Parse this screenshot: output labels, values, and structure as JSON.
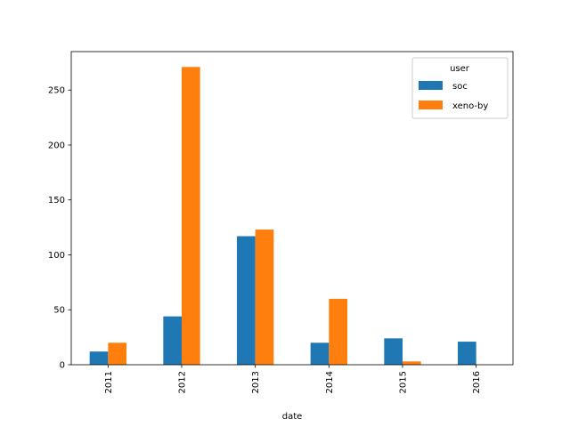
{
  "chart_data": {
    "type": "bar",
    "categories": [
      "2011",
      "2012",
      "2013",
      "2014",
      "2015",
      "2016"
    ],
    "series": [
      {
        "name": "soc",
        "color": "#1f77b4",
        "values": [
          12,
          44,
          117,
          20,
          24,
          21
        ]
      },
      {
        "name": "xeno-by",
        "color": "#ff7f0e",
        "values": [
          20,
          271,
          123,
          60,
          3,
          0
        ]
      }
    ],
    "xlabel": "date",
    "ylabel": "",
    "ylim": [
      0,
      285
    ],
    "yticks": [
      0,
      50,
      100,
      150,
      200,
      250
    ],
    "legend": {
      "title": "user",
      "placement": "top-right"
    },
    "grid": false
  }
}
